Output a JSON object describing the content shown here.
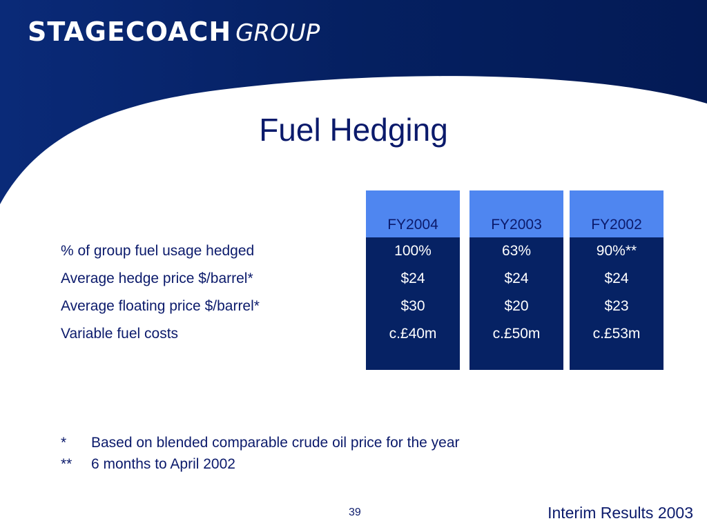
{
  "header": {
    "logo_word": "STAGECOACH",
    "logo_group": "GROUP",
    "colors": {
      "navy": "#062264",
      "accent_blue": "#4f86f0",
      "text_navy": "#0b1a6b"
    }
  },
  "slide": {
    "title": "Fuel Hedging"
  },
  "table": {
    "columns": [
      {
        "label": "FY2004",
        "values": [
          "100%",
          "$24",
          "$30",
          "c.£40m"
        ]
      },
      {
        "label": "FY2003",
        "values": [
          "63%",
          "$24",
          "$20",
          "c.£50m"
        ]
      },
      {
        "label": "FY2002",
        "values": [
          "90%**",
          "$24",
          "$23",
          "c.£53m"
        ]
      }
    ],
    "rows": [
      "% of group fuel usage hedged",
      "Average hedge price $/barrel*",
      "Average floating price $/barrel*",
      "Variable fuel costs"
    ]
  },
  "footnotes": [
    {
      "mark": "*",
      "text": "Based on blended comparable crude oil price for the year"
    },
    {
      "mark": "**",
      "text": "6 months to April 2002"
    }
  ],
  "footer": {
    "page_number": "39",
    "title": "Interim Results 2003"
  }
}
